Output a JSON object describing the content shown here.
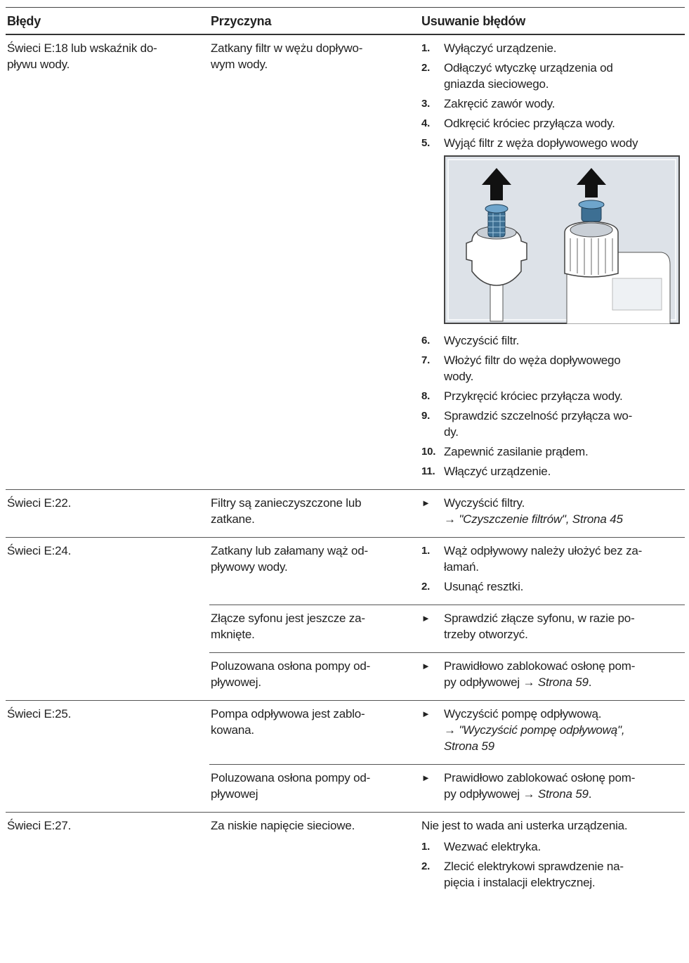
{
  "header": {
    "col1": "Błędy",
    "col2": "Przyczyna",
    "col3": "Usuwanie błędów"
  },
  "rows": [
    {
      "error": "Świeci E:18 lub wskaźnik do-\npływu wody.",
      "parts": [
        {
          "cause": "Zatkany filtr w wężu dopływo-\nwym wody.",
          "steps": [
            {
              "num": "1.",
              "text": "Wyłączyć urządzenie."
            },
            {
              "num": "2.",
              "text": "Odłączyć wtyczkę urządzenia od\ngniazda sieciowego."
            },
            {
              "num": "3.",
              "text": "Zakręcić zawór wody."
            },
            {
              "num": "4.",
              "text": "Odkręcić króciec przyłącza wody."
            },
            {
              "num": "5.",
              "text": "Wyjąć filtr z węża dopływowego wody"
            },
            {
              "num": "6.",
              "text": "Wyczyścić filtr."
            },
            {
              "num": "7.",
              "text": "Włożyć filtr do węża dopływowego\nwody."
            },
            {
              "num": "8.",
              "text": "Przykręcić króciec przyłącza wody."
            },
            {
              "num": "9.",
              "text": "Sprawdzić szczelność przyłącza wo-\ndy."
            },
            {
              "num": "10.",
              "text": "Zapewnić zasilanie prądem."
            },
            {
              "num": "11.",
              "text": "Włączyć urządzenie."
            }
          ]
        }
      ]
    },
    {
      "error": "Świeci E:22.",
      "parts": [
        {
          "cause": "Filtry są zanieczyszczone lub\nzatkane.",
          "bullet": {
            "marker": "►",
            "parts": [
              {
                "text": "Wyczyścić filtry.\n→ "
              },
              {
                "text": "\"Czyszczenie filtrów\", Strona 45",
                "italic": true
              }
            ]
          }
        }
      ]
    },
    {
      "error": "Świeci E:24.",
      "parts": [
        {
          "cause": "Zatkany lub załamany wąż od-\npływowy wody.",
          "steps": [
            {
              "num": "1.",
              "text": "Wąż odpływowy należy ułożyć bez za-\nłamań."
            },
            {
              "num": "2.",
              "text": "Usunąć resztki."
            }
          ]
        },
        {
          "cause": "Złącze syfonu jest jeszcze za-\nmknięte.",
          "bullet": {
            "marker": "►",
            "parts": [
              {
                "text": "Sprawdzić złącze syfonu, w razie po-\ntrzeby otworzyć."
              }
            ]
          }
        },
        {
          "cause": "Poluzowana osłona pompy od-\npływowej.",
          "bullet": {
            "marker": "►",
            "parts": [
              {
                "text": "Prawidłowo zablokować osłonę pom-\npy odpływowej → "
              },
              {
                "text": "Strona 59",
                "italic": true
              },
              {
                "text": "."
              }
            ]
          }
        }
      ]
    },
    {
      "error": "Świeci E:25.",
      "parts": [
        {
          "cause": "Pompa odpływowa jest zablo-\nkowana.",
          "bullet": {
            "marker": "►",
            "parts": [
              {
                "text": "Wyczyścić pompę odpływową.\n→ "
              },
              {
                "text": "\"Wyczyścić pompę odpływową\",\nStrona 59",
                "italic": true
              }
            ]
          }
        },
        {
          "cause": "Poluzowana osłona pompy od-\npływowej",
          "bullet": {
            "marker": "►",
            "parts": [
              {
                "text": "Prawidłowo zablokować osłonę pom-\npy odpływowej → "
              },
              {
                "text": "Strona 59",
                "italic": true
              },
              {
                "text": "."
              }
            ]
          }
        }
      ]
    },
    {
      "error": "Świeci E:27.",
      "parts": [
        {
          "cause": "Za niskie napięcie sieciowe.",
          "intro": "Nie jest to wada ani usterka urządzenia.",
          "steps": [
            {
              "num": "1.",
              "text": "Wezwać elektryka."
            },
            {
              "num": "2.",
              "text": "Zlecić elektrykowi sprawdzenie na-\npięcia i instalacji elektrycznej."
            }
          ]
        }
      ]
    }
  ]
}
